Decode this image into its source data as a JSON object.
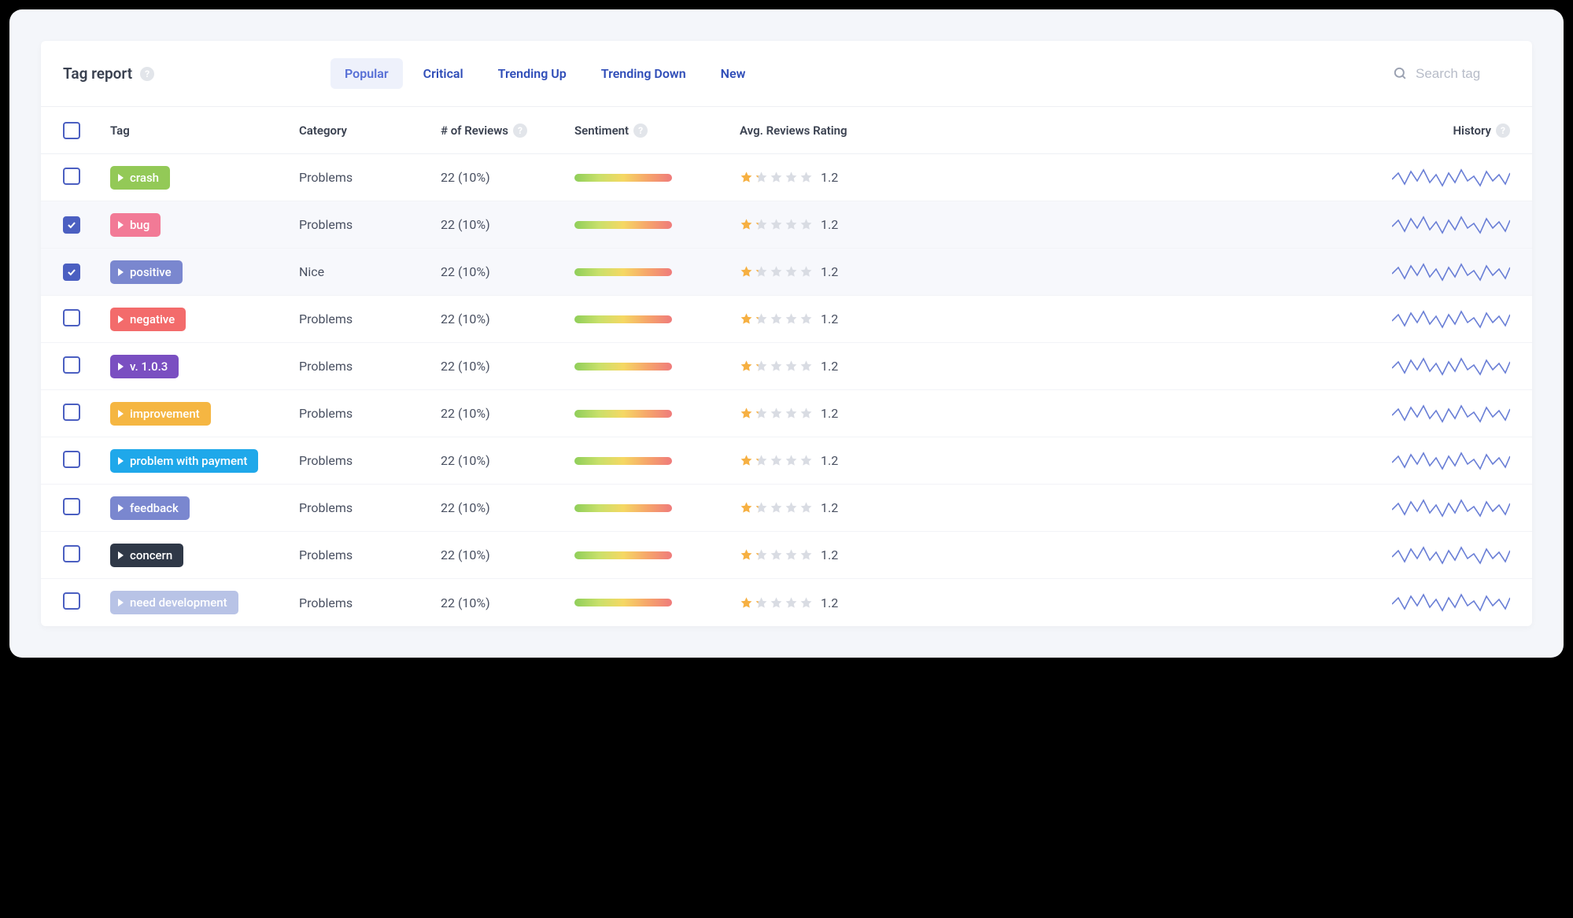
{
  "colors": {
    "page_bg": "#000000",
    "outer_bg": "#f4f6fa",
    "card_bg": "#ffffff",
    "border": "#eef0f4",
    "row_border": "#f2f3f7",
    "text_primary": "#3a4150",
    "text_secondary": "#4a5162",
    "text_muted": "#9aa1b1",
    "placeholder": "#b7bcc8",
    "tab_link": "#2f4db8",
    "tab_active_bg": "#eef1fb",
    "tab_active_text": "#5870d6",
    "checkbox_border": "#4b5fc1",
    "checkbox_checked_bg": "#4b5fc1",
    "row_selected_bg": "#f7f8fc",
    "help_bg": "#e2e5ea",
    "star_filled": "#f6b042",
    "star_empty": "#d9dce3",
    "sparkline": "#6a7fd6",
    "sentiment_gradient": [
      "#8fce5a",
      "#c9e06a",
      "#f5d863",
      "#f6a56b",
      "#ef7b7b"
    ]
  },
  "typography": {
    "title_size": 19,
    "tab_size": 16,
    "th_size": 15,
    "td_size": 16,
    "tag_size": 15
  },
  "header": {
    "title": "Tag report",
    "tabs": [
      "Popular",
      "Critical",
      "Trending Up",
      "Trending Down",
      "New"
    ],
    "active_tab_index": 0,
    "search_placeholder": "Search tag"
  },
  "columns": {
    "tag": "Tag",
    "category": "Category",
    "reviews": "# of Reviews",
    "sentiment": "Sentiment",
    "rating": "Avg. Reviews Rating",
    "history": "History"
  },
  "sparkline": {
    "points": [
      0,
      18,
      8,
      10,
      16,
      24,
      24,
      8,
      32,
      20,
      40,
      6,
      48,
      22,
      56,
      12,
      64,
      26,
      72,
      10,
      80,
      22,
      88,
      6,
      96,
      20,
      104,
      14,
      112,
      26,
      120,
      8,
      128,
      20,
      136,
      12,
      144,
      24,
      150,
      10
    ],
    "stroke_width": 1.6
  },
  "sentiment_bar": {
    "width": 124,
    "height": 10,
    "radius": 6
  },
  "rows": [
    {
      "checked": false,
      "tag": "crash",
      "tag_color": "#93c957",
      "category": "Problems",
      "reviews": "22 (10%)",
      "rating": 1.2
    },
    {
      "checked": true,
      "tag": "bug",
      "tag_color": "#f27a96",
      "category": "Problems",
      "reviews": "22 (10%)",
      "rating": 1.2
    },
    {
      "checked": true,
      "tag": "positive",
      "tag_color": "#7a87cf",
      "category": "Nice",
      "reviews": "22 (10%)",
      "rating": 1.2
    },
    {
      "checked": false,
      "tag": "negative",
      "tag_color": "#f36b6b",
      "category": "Problems",
      "reviews": "22 (10%)",
      "rating": 1.2
    },
    {
      "checked": false,
      "tag": "v. 1.0.3",
      "tag_color": "#7a4fc1",
      "category": "Problems",
      "reviews": "22 (10%)",
      "rating": 1.2
    },
    {
      "checked": false,
      "tag": "improvement",
      "tag_color": "#f5b642",
      "category": "Problems",
      "reviews": "22 (10%)",
      "rating": 1.2
    },
    {
      "checked": false,
      "tag": "problem with payment",
      "tag_color": "#1fa8ea",
      "category": "Problems",
      "reviews": "22 (10%)",
      "rating": 1.2
    },
    {
      "checked": false,
      "tag": "feedback",
      "tag_color": "#7a87cf",
      "category": "Problems",
      "reviews": "22 (10%)",
      "rating": 1.2
    },
    {
      "checked": false,
      "tag": "concern",
      "tag_color": "#2f3847",
      "category": "Problems",
      "reviews": "22 (10%)",
      "rating": 1.2
    },
    {
      "checked": false,
      "tag": "need development",
      "tag_color": "#b8c3e6",
      "category": "Problems",
      "reviews": "22 (10%)",
      "rating": 1.2
    }
  ]
}
